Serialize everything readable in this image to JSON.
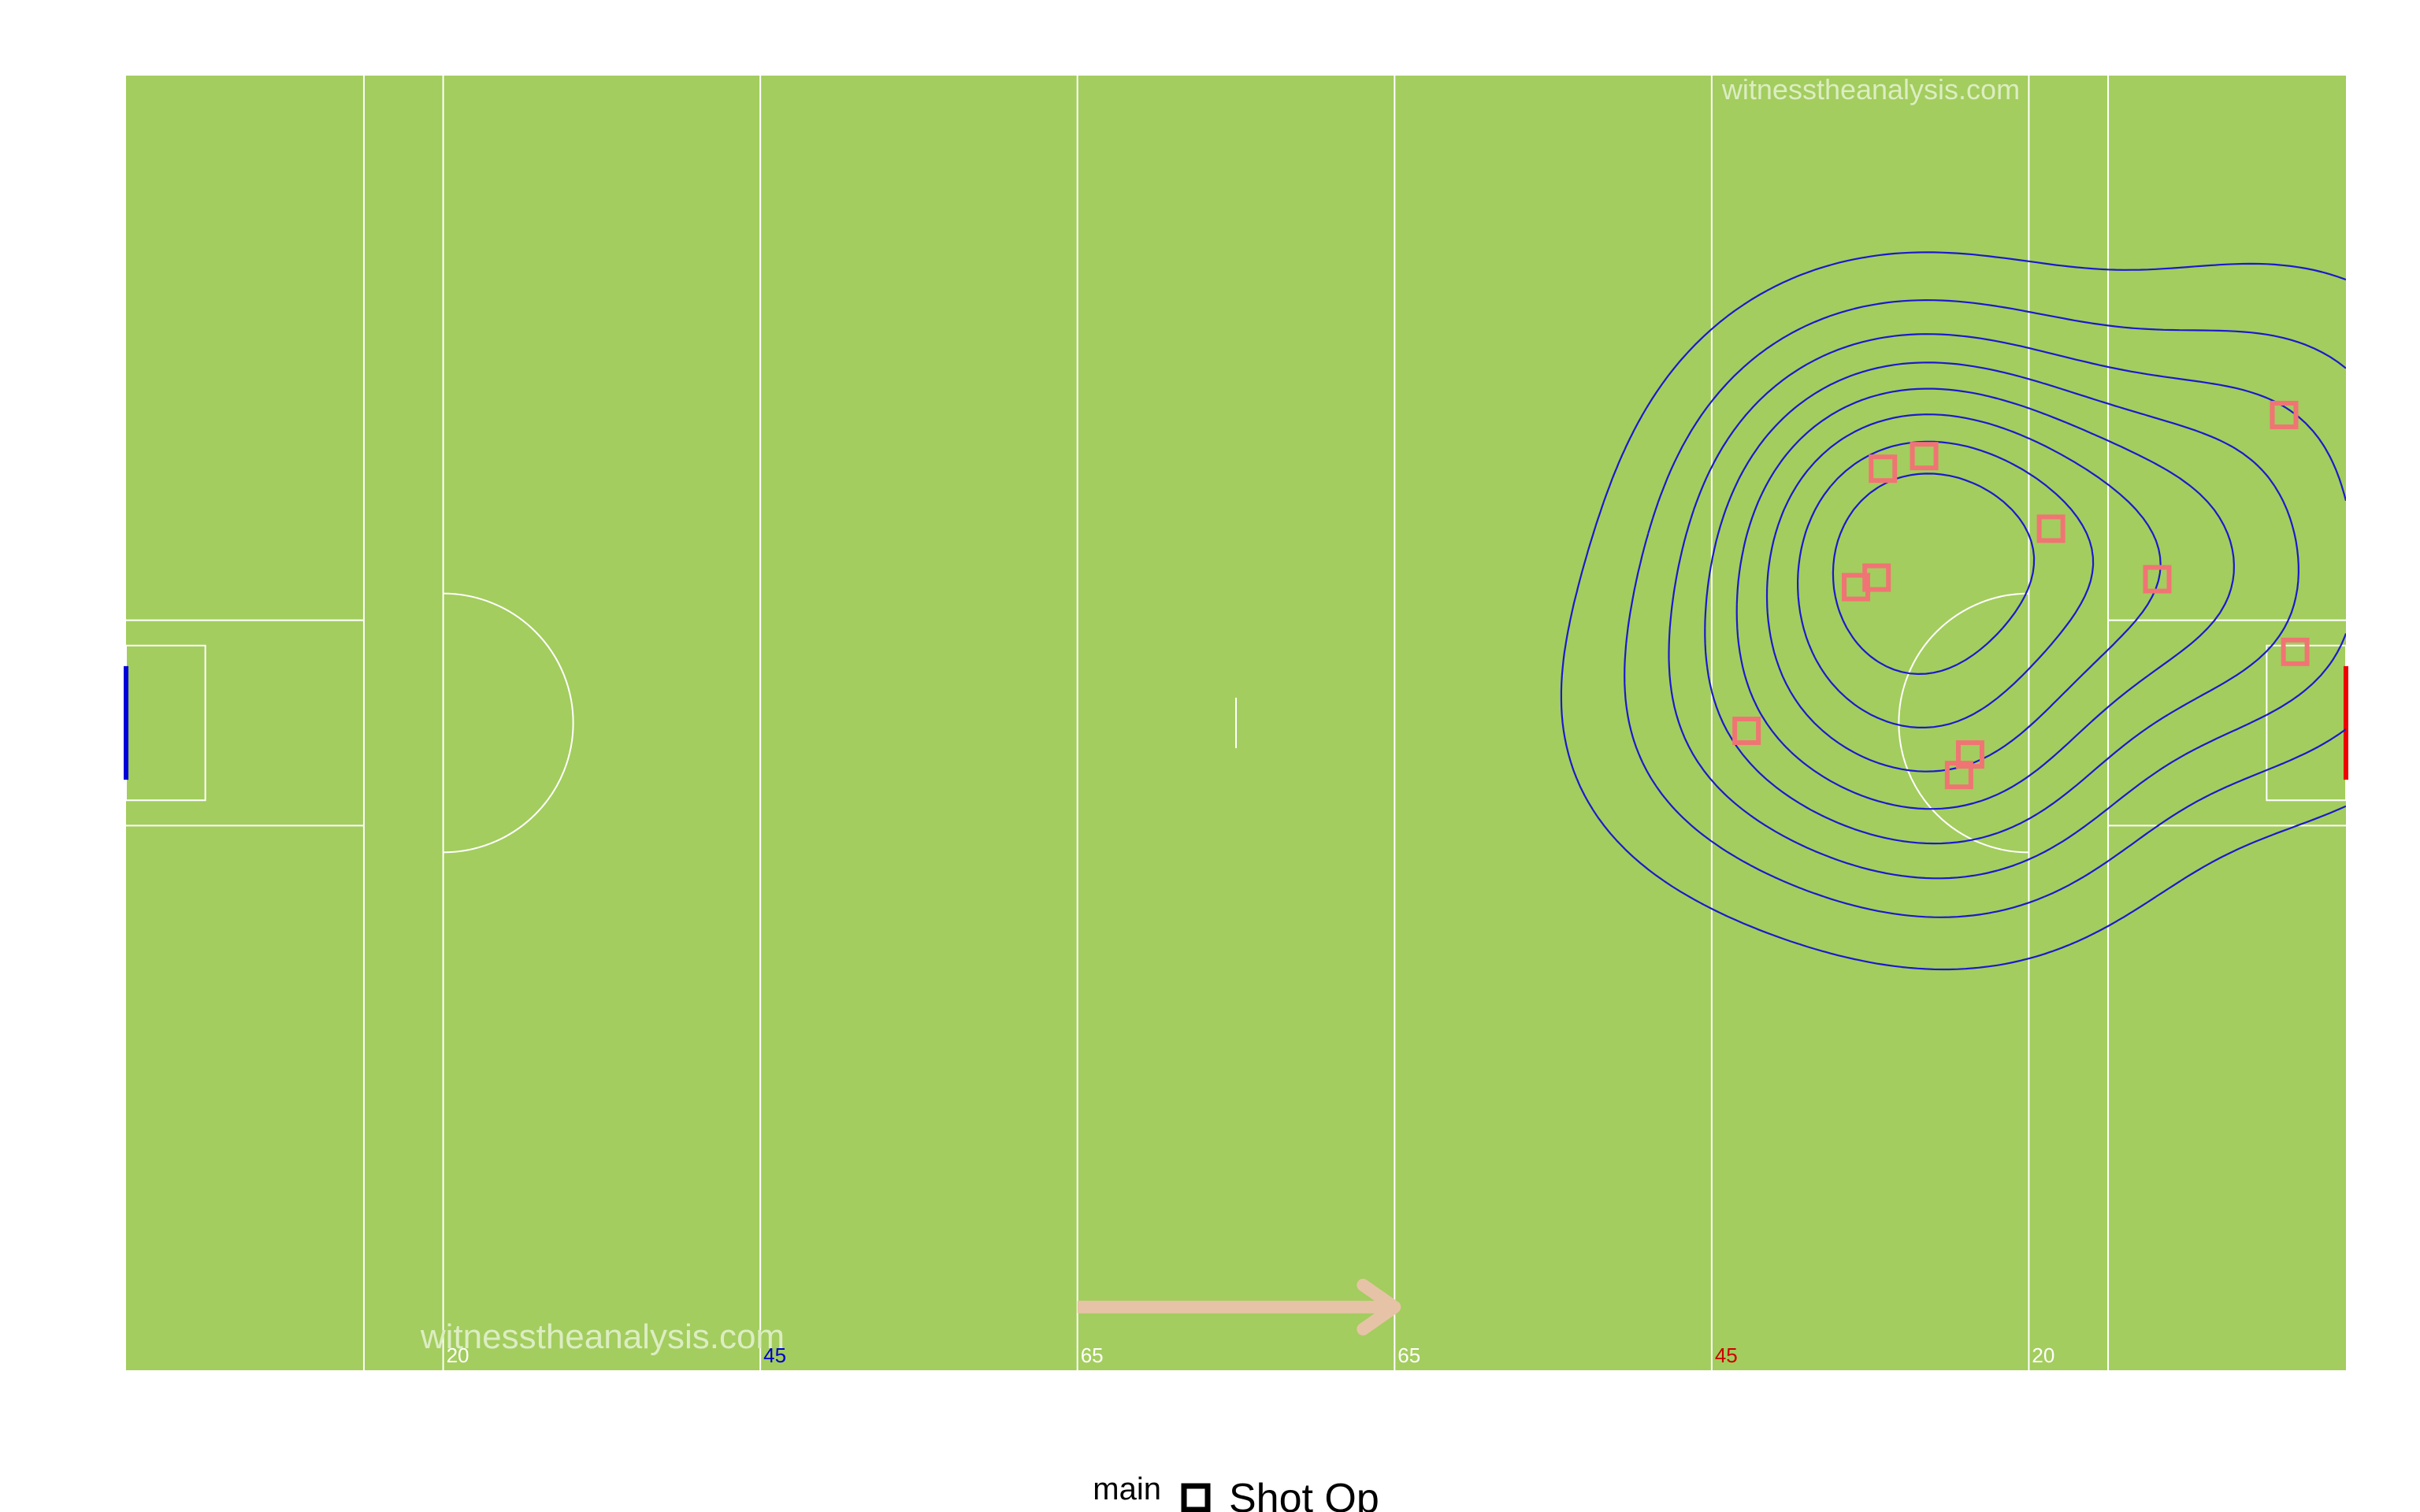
{
  "chart_data": {
    "type": "scatter",
    "pitch": {
      "length": 140,
      "width": 82,
      "line_positions_m": [
        15,
        20,
        40,
        60,
        80,
        100,
        120,
        125
      ],
      "line_labels": [
        {
          "x": 20,
          "text": "20",
          "color": "#ffffff"
        },
        {
          "x": 40,
          "text": "45",
          "color": "#0000cc"
        },
        {
          "x": 60,
          "text": "65",
          "color": "#ffffff"
        },
        {
          "x": 80,
          "text": "65",
          "color": "#ffffff"
        },
        {
          "x": 100,
          "text": "45",
          "color": "#cc0000"
        },
        {
          "x": 120,
          "text": "20",
          "color": "#ffffff"
        }
      ],
      "grass_color": "#a3cd5e",
      "line_color": "#ffffff",
      "left_goal_color": "#0000dd",
      "right_goal_color": "#ee0000"
    },
    "watermarks": [
      "witnesstheanalysis.com",
      "witnesstheanalysis.com"
    ],
    "direction_arrow": {
      "from_x": 60,
      "to_x": 80,
      "y": 4,
      "color": "#e6c3a6"
    },
    "density_contours": {
      "color": "#1a1acd",
      "levels": 8
    },
    "series": [
      {
        "name": "Shot Op",
        "marker": "square-open",
        "color": "#f07474",
        "points": [
          {
            "x": 110.8,
            "y": 57.1
          },
          {
            "x": 113.4,
            "y": 57.9
          },
          {
            "x": 121.4,
            "y": 53.3
          },
          {
            "x": 136.1,
            "y": 60.5
          },
          {
            "x": 128.1,
            "y": 50.1
          },
          {
            "x": 109.1,
            "y": 49.6
          },
          {
            "x": 110.4,
            "y": 50.2
          },
          {
            "x": 136.8,
            "y": 45.5
          },
          {
            "x": 102.2,
            "y": 40.5
          },
          {
            "x": 116.3,
            "y": 39.0
          },
          {
            "x": 115.6,
            "y": 37.7
          }
        ]
      }
    ],
    "legend": {
      "title": "main",
      "position": "bottom",
      "entries": [
        "Shot Op"
      ]
    }
  }
}
